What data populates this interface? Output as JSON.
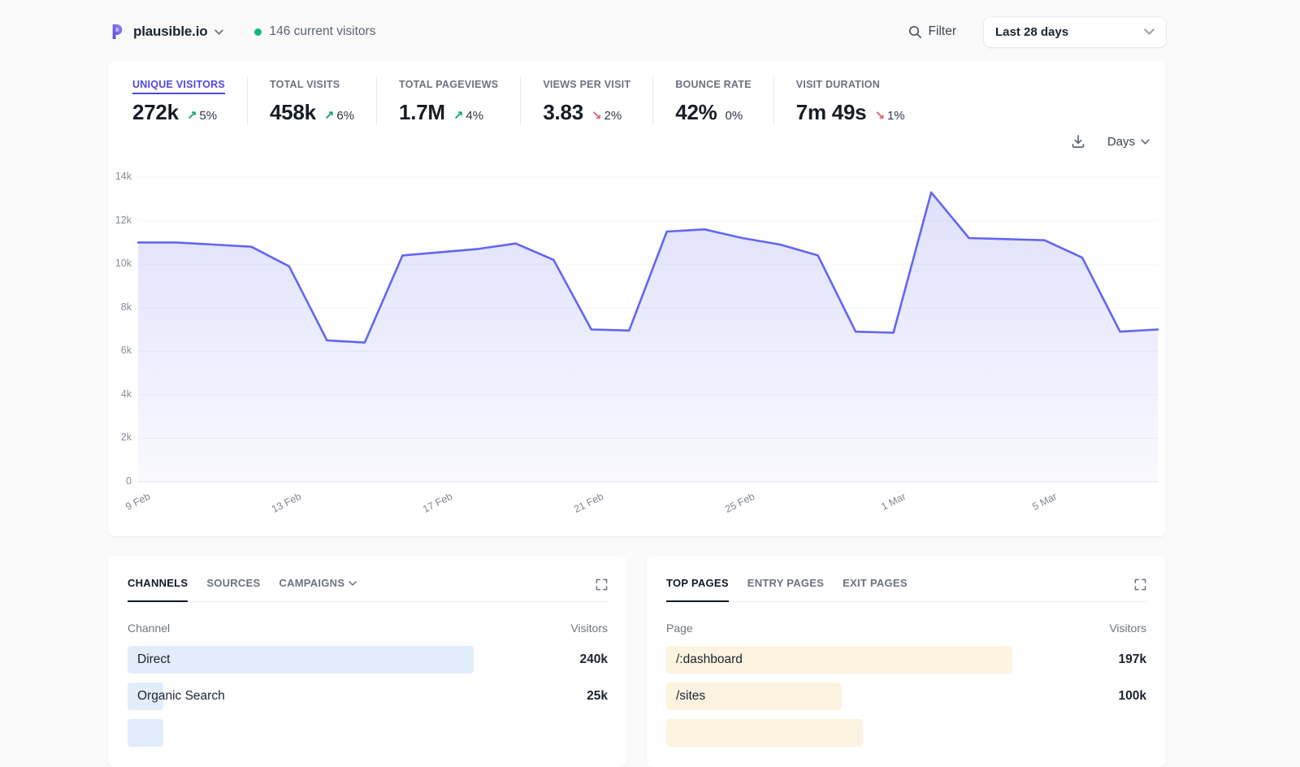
{
  "header": {
    "site_name": "plausible.io",
    "current_visitors": "146 current visitors",
    "filter_label": "Filter",
    "date_range": "Last 28 days"
  },
  "toolbar": {
    "interval_label": "Days"
  },
  "stats": [
    {
      "label": "UNIQUE VISITORS",
      "value": "272k",
      "change": "5%",
      "direction": "up",
      "active": true
    },
    {
      "label": "TOTAL VISITS",
      "value": "458k",
      "change": "6%",
      "direction": "up",
      "active": false
    },
    {
      "label": "TOTAL PAGEVIEWS",
      "value": "1.7M",
      "change": "4%",
      "direction": "up",
      "active": false
    },
    {
      "label": "VIEWS PER VISIT",
      "value": "3.83",
      "change": "2%",
      "direction": "down",
      "active": false
    },
    {
      "label": "BOUNCE RATE",
      "value": "42%",
      "change": "0%",
      "direction": "flat",
      "active": false
    },
    {
      "label": "VISIT DURATION",
      "value": "7m 49s",
      "change": "1%",
      "direction": "down",
      "active": false
    }
  ],
  "chart_data": {
    "type": "area",
    "title": "Unique visitors by day",
    "x": [
      "9 Feb",
      "10 Feb",
      "11 Feb",
      "12 Feb",
      "13 Feb",
      "14 Feb",
      "15 Feb",
      "16 Feb",
      "17 Feb",
      "18 Feb",
      "19 Feb",
      "20 Feb",
      "21 Feb",
      "22 Feb",
      "23 Feb",
      "24 Feb",
      "25 Feb",
      "26 Feb",
      "27 Feb",
      "28 Feb",
      "1 Mar",
      "2 Mar",
      "3 Mar",
      "4 Mar",
      "5 Mar",
      "6 Mar",
      "7 Mar",
      "8 Mar"
    ],
    "values": [
      11000,
      11000,
      10900,
      10800,
      9900,
      6500,
      6400,
      10400,
      10550,
      10700,
      10950,
      10200,
      7000,
      6950,
      11500,
      11600,
      11200,
      10900,
      10400,
      6900,
      6850,
      13300,
      11200,
      11150,
      11100,
      10300,
      6900,
      7000
    ],
    "xticks": [
      {
        "index": 0,
        "label": "9 Feb"
      },
      {
        "index": 4,
        "label": "13 Feb"
      },
      {
        "index": 8,
        "label": "17 Feb"
      },
      {
        "index": 12,
        "label": "21 Feb"
      },
      {
        "index": 16,
        "label": "25 Feb"
      },
      {
        "index": 20,
        "label": "1 Mar"
      },
      {
        "index": 24,
        "label": "5 Mar"
      }
    ],
    "yticks": [
      {
        "value": 0,
        "label": "0"
      },
      {
        "value": 2000,
        "label": "2k"
      },
      {
        "value": 4000,
        "label": "4k"
      },
      {
        "value": 6000,
        "label": "6k"
      },
      {
        "value": 8000,
        "label": "8k"
      },
      {
        "value": 10000,
        "label": "10k"
      },
      {
        "value": 12000,
        "label": "12k"
      },
      {
        "value": 14000,
        "label": "14k"
      }
    ],
    "ylim": [
      0,
      14000
    ],
    "grid": true,
    "legend": "none",
    "line_color": "#6366f1",
    "fill_color": "#6366f1"
  },
  "panels": [
    {
      "tabs": [
        {
          "label": "CHANNELS",
          "active": true,
          "chevron": false
        },
        {
          "label": "SOURCES",
          "active": false,
          "chevron": false
        },
        {
          "label": "CAMPAIGNS",
          "active": false,
          "chevron": true
        }
      ],
      "columns": {
        "left": "Channel",
        "right": "Visitors"
      },
      "rows": [
        {
          "label": "Direct",
          "value": "240k",
          "bar_pct": 72
        },
        {
          "label": "Organic Search",
          "value": "25k",
          "bar_pct": 7.5
        },
        {
          "label": "",
          "value": "",
          "bar_pct": 7.4
        }
      ],
      "bar_color": "#e2edfb"
    },
    {
      "tabs": [
        {
          "label": "TOP PAGES",
          "active": true,
          "chevron": false
        },
        {
          "label": "ENTRY PAGES",
          "active": false,
          "chevron": false
        },
        {
          "label": "EXIT PAGES",
          "active": false,
          "chevron": false
        }
      ],
      "columns": {
        "left": "Page",
        "right": "Visitors"
      },
      "rows": [
        {
          "label": "/:dashboard",
          "value": "197k",
          "bar_pct": 72
        },
        {
          "label": "/sites",
          "value": "100k",
          "bar_pct": 36.5
        },
        {
          "label": "",
          "value": "",
          "bar_pct": 41
        }
      ],
      "bar_color": "#fcf3e1"
    }
  ],
  "colors": {
    "accent": "#4f46e5",
    "positive": "#0e9f6e",
    "negative": "#e05b6f",
    "live_dot": "#10b981"
  }
}
